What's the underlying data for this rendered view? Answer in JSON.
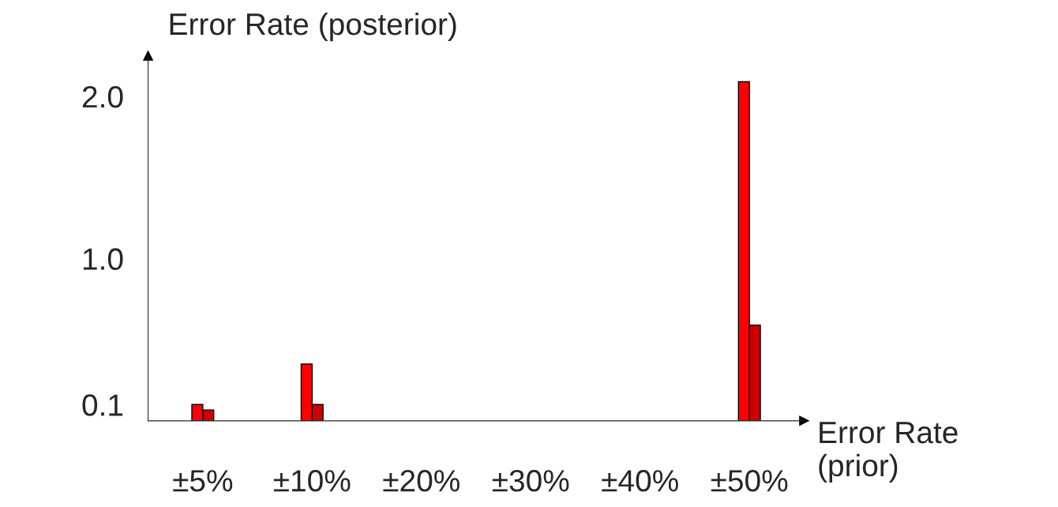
{
  "chart_data": {
    "type": "bar",
    "xlabel": "Error Rate\n(prior)",
    "ylabel": "Error Rate (posterior)",
    "categories": [
      "±5%",
      "±10%",
      "±20%",
      "±30%",
      "±40%",
      "±50%"
    ],
    "series": [
      {
        "color": "#ff0000",
        "values": [
          0.1,
          0.35,
          null,
          null,
          null,
          2.09
        ]
      },
      {
        "color": "#cc0000",
        "values": [
          0.067,
          0.1,
          null,
          null,
          null,
          0.59
        ]
      }
    ],
    "ylim": [
      0,
      2.25
    ],
    "yticks": [
      {
        "value": 0.1,
        "label": "0.1"
      },
      {
        "value": 1,
        "label": "1.0"
      },
      {
        "value": 2,
        "label": "2.0"
      }
    ],
    "grid": false,
    "legend": false
  }
}
